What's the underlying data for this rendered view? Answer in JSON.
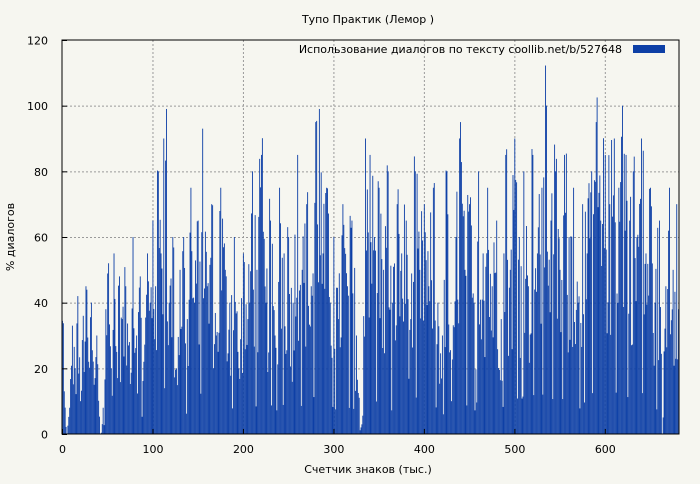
{
  "chart_data": {
    "type": "bar",
    "title": "Тупо Практик (Лемор )",
    "xlabel": "Счетчик знаков (тыс.)",
    "ylabel": "% диалогов",
    "xlim": [
      0,
      682
    ],
    "ylim": [
      0,
      120
    ],
    "xticks": [
      0,
      100,
      200,
      300,
      400,
      500,
      600
    ],
    "yticks": [
      0,
      20,
      40,
      60,
      80,
      100,
      120
    ],
    "grid": true,
    "legend_position": "top-right",
    "bar_step": 1,
    "series": [
      {
        "name": "Использование диалогов по тексту  coollib.net/b/527648",
        "color": "#0d3fa6",
        "key_values": [
          {
            "x": 2,
            "y": 13
          },
          {
            "x": 5,
            "y": 0
          },
          {
            "x": 8,
            "y": 8
          },
          {
            "x": 11,
            "y": 33
          },
          {
            "x": 14,
            "y": 20
          },
          {
            "x": 17,
            "y": 42
          },
          {
            "x": 20,
            "y": 10
          },
          {
            "x": 23,
            "y": 36
          },
          {
            "x": 26,
            "y": 45
          },
          {
            "x": 29,
            "y": 22
          },
          {
            "x": 32,
            "y": 40
          },
          {
            "x": 35,
            "y": 15
          },
          {
            "x": 38,
            "y": 30
          },
          {
            "x": 42,
            "y": 0
          },
          {
            "x": 45,
            "y": 8
          },
          {
            "x": 48,
            "y": 38
          },
          {
            "x": 51,
            "y": 52
          },
          {
            "x": 54,
            "y": 20
          },
          {
            "x": 57,
            "y": 55
          },
          {
            "x": 60,
            "y": 25
          },
          {
            "x": 63,
            "y": 48
          },
          {
            "x": 66,
            "y": 35
          },
          {
            "x": 70,
            "y": 45
          },
          {
            "x": 74,
            "y": 28
          },
          {
            "x": 78,
            "y": 60
          },
          {
            "x": 82,
            "y": 30
          },
          {
            "x": 86,
            "y": 48
          },
          {
            "x": 90,
            "y": 22
          },
          {
            "x": 94,
            "y": 55
          },
          {
            "x": 97,
            "y": 40
          },
          {
            "x": 100,
            "y": 65
          },
          {
            "x": 103,
            "y": 45
          },
          {
            "x": 106,
            "y": 80
          },
          {
            "x": 109,
            "y": 55
          },
          {
            "x": 112,
            "y": 90
          },
          {
            "x": 115,
            "y": 99
          },
          {
            "x": 118,
            "y": 40
          },
          {
            "x": 122,
            "y": 60
          },
          {
            "x": 126,
            "y": 20
          },
          {
            "x": 130,
            "y": 50
          },
          {
            "x": 134,
            "y": 60
          },
          {
            "x": 138,
            "y": 35
          },
          {
            "x": 142,
            "y": 75
          },
          {
            "x": 146,
            "y": 40
          },
          {
            "x": 150,
            "y": 65
          },
          {
            "x": 155,
            "y": 93
          },
          {
            "x": 160,
            "y": 45
          },
          {
            "x": 165,
            "y": 70
          },
          {
            "x": 170,
            "y": 30
          },
          {
            "x": 175,
            "y": 75
          },
          {
            "x": 180,
            "y": 50
          },
          {
            "x": 185,
            "y": 40
          },
          {
            "x": 190,
            "y": 60
          },
          {
            "x": 195,
            "y": 20
          },
          {
            "x": 200,
            "y": 55
          },
          {
            "x": 205,
            "y": 35
          },
          {
            "x": 210,
            "y": 80
          },
          {
            "x": 215,
            "y": 50
          },
          {
            "x": 220,
            "y": 85
          },
          {
            "x": 225,
            "y": 40
          },
          {
            "x": 230,
            "y": 65
          },
          {
            "x": 235,
            "y": 30
          },
          {
            "x": 240,
            "y": 75
          },
          {
            "x": 245,
            "y": 55
          },
          {
            "x": 250,
            "y": 60
          },
          {
            "x": 255,
            "y": 40
          },
          {
            "x": 260,
            "y": 85
          },
          {
            "x": 265,
            "y": 50
          },
          {
            "x": 270,
            "y": 70
          },
          {
            "x": 275,
            "y": 45
          },
          {
            "x": 280,
            "y": 95
          },
          {
            "x": 284,
            "y": 99
          },
          {
            "x": 288,
            "y": 55
          },
          {
            "x": 292,
            "y": 75
          },
          {
            "x": 296,
            "y": 40
          },
          {
            "x": 300,
            "y": 60
          },
          {
            "x": 305,
            "y": 35
          },
          {
            "x": 310,
            "y": 70
          },
          {
            "x": 315,
            "y": 45
          },
          {
            "x": 320,
            "y": 65
          },
          {
            "x": 325,
            "y": 30
          },
          {
            "x": 330,
            "y": 2
          },
          {
            "x": 335,
            "y": 90
          },
          {
            "x": 340,
            "y": 85
          },
          {
            "x": 345,
            "y": 60
          },
          {
            "x": 350,
            "y": 75
          },
          {
            "x": 355,
            "y": 50
          },
          {
            "x": 360,
            "y": 80
          },
          {
            "x": 365,
            "y": 40
          },
          {
            "x": 370,
            "y": 70
          },
          {
            "x": 375,
            "y": 55
          },
          {
            "x": 380,
            "y": 65
          },
          {
            "x": 385,
            "y": 35
          },
          {
            "x": 390,
            "y": 80
          },
          {
            "x": 395,
            "y": 50
          },
          {
            "x": 400,
            "y": 70
          },
          {
            "x": 405,
            "y": 45
          },
          {
            "x": 410,
            "y": 75
          },
          {
            "x": 415,
            "y": 40
          },
          {
            "x": 420,
            "y": 30
          },
          {
            "x": 425,
            "y": 80
          },
          {
            "x": 430,
            "y": 10
          },
          {
            "x": 435,
            "y": 60
          },
          {
            "x": 440,
            "y": 95
          },
          {
            "x": 445,
            "y": 50
          },
          {
            "x": 450,
            "y": 70
          },
          {
            "x": 455,
            "y": 40
          },
          {
            "x": 460,
            "y": 80
          },
          {
            "x": 465,
            "y": 55
          },
          {
            "x": 470,
            "y": 75
          },
          {
            "x": 475,
            "y": 45
          },
          {
            "x": 480,
            "y": 65
          },
          {
            "x": 485,
            "y": 35
          },
          {
            "x": 490,
            "y": 85
          },
          {
            "x": 495,
            "y": 50
          },
          {
            "x": 500,
            "y": 90
          },
          {
            "x": 505,
            "y": 60
          },
          {
            "x": 510,
            "y": 80
          },
          {
            "x": 515,
            "y": 45
          },
          {
            "x": 520,
            "y": 85
          },
          {
            "x": 525,
            "y": 55
          },
          {
            "x": 530,
            "y": 75
          },
          {
            "x": 535,
            "y": 100
          },
          {
            "x": 540,
            "y": 65
          },
          {
            "x": 545,
            "y": 80
          },
          {
            "x": 550,
            "y": 50
          },
          {
            "x": 555,
            "y": 85
          },
          {
            "x": 560,
            "y": 60
          },
          {
            "x": 565,
            "y": 75
          },
          {
            "x": 570,
            "y": 40
          },
          {
            "x": 575,
            "y": 70
          },
          {
            "x": 580,
            "y": 55
          },
          {
            "x": 585,
            "y": 80
          },
          {
            "x": 590,
            "y": 95
          },
          {
            "x": 595,
            "y": 65
          },
          {
            "x": 600,
            "y": 85
          },
          {
            "x": 605,
            "y": 70
          },
          {
            "x": 610,
            "y": 90
          },
          {
            "x": 615,
            "y": 75
          },
          {
            "x": 619,
            "y": 100
          },
          {
            "x": 623,
            "y": 85
          },
          {
            "x": 627,
            "y": 65
          },
          {
            "x": 631,
            "y": 80
          },
          {
            "x": 635,
            "y": 60
          },
          {
            "x": 640,
            "y": 90
          },
          {
            "x": 645,
            "y": 55
          },
          {
            "x": 650,
            "y": 75
          },
          {
            "x": 655,
            "y": 40
          },
          {
            "x": 660,
            "y": 65
          },
          {
            "x": 663,
            "y": 0
          },
          {
            "x": 667,
            "y": 45
          },
          {
            "x": 671,
            "y": 75
          },
          {
            "x": 675,
            "y": 50
          },
          {
            "x": 679,
            "y": 70
          },
          {
            "x": 681,
            "y": 38
          }
        ]
      }
    ]
  }
}
